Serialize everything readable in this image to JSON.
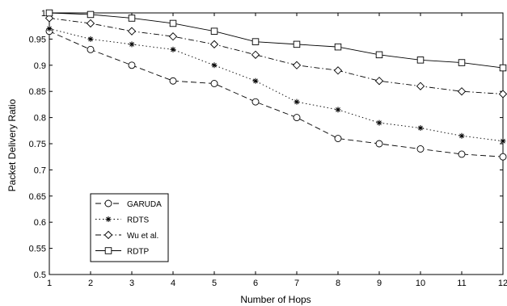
{
  "chart_data": {
    "type": "line",
    "xlabel": "Number of Hops",
    "ylabel": "Packet Delivery Ratio",
    "x": [
      1,
      2,
      3,
      4,
      5,
      6,
      7,
      8,
      9,
      10,
      11,
      12
    ],
    "xlim": [
      1,
      12
    ],
    "ylim": [
      0.5,
      1.0
    ],
    "xticks": [
      "1",
      "2",
      "3",
      "4",
      "5",
      "6",
      "7",
      "8",
      "9",
      "10",
      "11",
      "12"
    ],
    "yticks": [
      "0.5",
      "0.55",
      "0.6",
      "0.65",
      "0.7",
      "0.75",
      "0.8",
      "0.85",
      "0.9",
      "0.95",
      "1"
    ],
    "grid": false,
    "legend_position": "lower-left",
    "series": [
      {
        "name": "GARUDA",
        "line_style": "dashed",
        "marker": "circle",
        "values": [
          0.965,
          0.93,
          0.9,
          0.87,
          0.865,
          0.83,
          0.8,
          0.76,
          0.75,
          0.74,
          0.73,
          0.725
        ]
      },
      {
        "name": "RDTS",
        "line_style": "dotted",
        "marker": "asterisk",
        "values": [
          0.97,
          0.95,
          0.94,
          0.93,
          0.9,
          0.87,
          0.83,
          0.815,
          0.79,
          0.78,
          0.765,
          0.755
        ]
      },
      {
        "name": "Wu et al.",
        "line_style": "dash-dot",
        "marker": "diamond",
        "values": [
          0.99,
          0.98,
          0.965,
          0.955,
          0.94,
          0.92,
          0.9,
          0.89,
          0.87,
          0.86,
          0.85,
          0.845
        ]
      },
      {
        "name": "RDTP",
        "line_style": "solid",
        "marker": "square",
        "values": [
          1.0,
          0.997,
          0.99,
          0.98,
          0.965,
          0.945,
          0.94,
          0.935,
          0.92,
          0.91,
          0.905,
          0.895
        ]
      }
    ]
  }
}
